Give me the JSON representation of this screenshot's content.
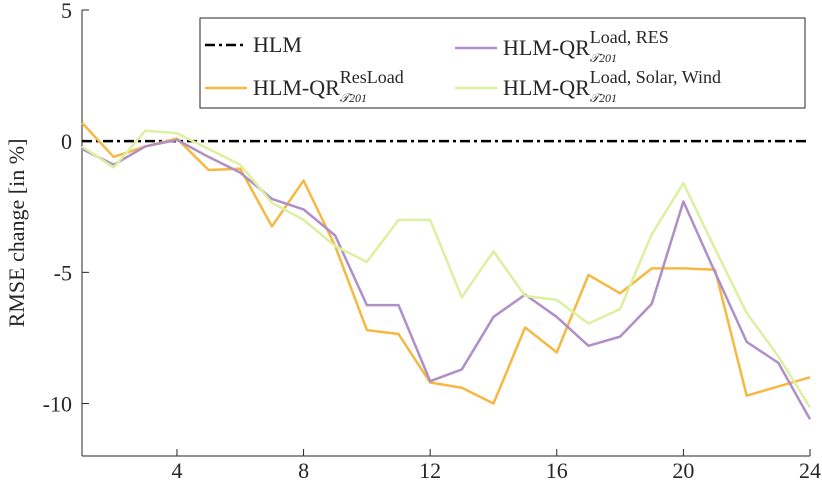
{
  "chart_data": {
    "type": "line",
    "ylabel": "RMSE change [in %]",
    "x": [
      1,
      2,
      3,
      4,
      5,
      6,
      7,
      8,
      9,
      10,
      11,
      12,
      13,
      14,
      15,
      16,
      17,
      18,
      19,
      20,
      21,
      22,
      23,
      24
    ],
    "xlim": [
      1,
      24
    ],
    "xticks": [
      4,
      8,
      12,
      16,
      20,
      24
    ],
    "ylim": [
      -12,
      5
    ],
    "yticks": [
      5,
      0,
      -5,
      -10
    ],
    "series": [
      {
        "name": "HLM",
        "color": "#000000",
        "dash": "dashdot",
        "values": [
          0,
          0,
          0,
          0,
          0,
          0,
          0,
          0,
          0,
          0,
          0,
          0,
          0,
          0,
          0,
          0,
          0,
          0,
          0,
          0,
          0,
          0,
          0,
          0
        ]
      },
      {
        "name": "HLM-QR",
        "name_sup": "ResLoad",
        "name_sub": "𝒯201",
        "color": "#f5b942",
        "values": [
          0.7,
          -0.6,
          -0.2,
          0.1,
          -1.1,
          -1.05,
          -3.25,
          -1.5,
          -4.0,
          -7.2,
          -7.35,
          -9.2,
          -9.4,
          -10.0,
          -7.1,
          -8.05,
          -5.1,
          -5.8,
          -4.85,
          -4.85,
          -4.9,
          -9.7,
          -9.35,
          -9.0
        ]
      },
      {
        "name": "HLM-QR",
        "name_sup": "Load, RES",
        "name_sub": "𝒯201",
        "color": "#b08fc7",
        "values": [
          -0.3,
          -0.9,
          -0.2,
          0.05,
          -0.6,
          -1.2,
          -2.2,
          -2.6,
          -3.6,
          -6.25,
          -6.25,
          -9.15,
          -8.7,
          -6.7,
          -5.85,
          -6.7,
          -7.8,
          -7.45,
          -6.2,
          -2.3,
          -5.0,
          -7.65,
          -8.45,
          -10.6
        ]
      },
      {
        "name": "HLM-QR",
        "name_sup": "Load, Solar, Wind",
        "name_sub": "𝒯201",
        "color": "#dcf0a0",
        "values": [
          -0.2,
          -1.0,
          0.4,
          0.3,
          -0.3,
          -0.9,
          -2.35,
          -3.0,
          -4.0,
          -4.6,
          -3.0,
          -3.0,
          -5.95,
          -4.2,
          -5.9,
          -6.05,
          -6.95,
          -6.4,
          -3.55,
          -1.6,
          -4.1,
          -6.55,
          -8.2,
          -10.15
        ]
      }
    ]
  }
}
